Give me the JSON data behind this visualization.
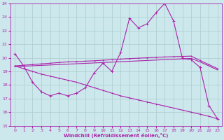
{
  "xlabel": "Windchill (Refroidissement éolien,°C)",
  "ylabel": "",
  "xlim": [
    -0.5,
    23.5
  ],
  "ylim": [
    15,
    24
  ],
  "yticks": [
    15,
    16,
    17,
    18,
    19,
    20,
    21,
    22,
    23,
    24
  ],
  "xticks": [
    0,
    1,
    2,
    3,
    4,
    5,
    6,
    7,
    8,
    9,
    10,
    11,
    12,
    13,
    14,
    15,
    16,
    17,
    18,
    19,
    20,
    21,
    22,
    23
  ],
  "bg_color": "#cce8ec",
  "grid_color": "#aacccc",
  "line_color": "#aa22aa",
  "line1_x": [
    0,
    1,
    2,
    3,
    4,
    5,
    6,
    7,
    8,
    9,
    10,
    11,
    12,
    13,
    14,
    15,
    16,
    17,
    18,
    19,
    20,
    21,
    22,
    23
  ],
  "line1_y": [
    20.3,
    19.4,
    18.2,
    17.5,
    17.2,
    17.4,
    17.2,
    17.4,
    17.8,
    18.9,
    19.6,
    19.0,
    20.4,
    22.9,
    22.2,
    22.5,
    23.3,
    24.0,
    22.7,
    19.95,
    19.85,
    19.3,
    16.5,
    15.5
  ],
  "line2_x": [
    0,
    1,
    2,
    3,
    4,
    5,
    6,
    7,
    8,
    9,
    10,
    11,
    12,
    13,
    14,
    15,
    16,
    17,
    18,
    19,
    20,
    21,
    22,
    23
  ],
  "line2_y": [
    19.4,
    19.45,
    19.5,
    19.55,
    19.6,
    19.65,
    19.7,
    19.72,
    19.75,
    19.78,
    19.82,
    19.86,
    19.9,
    19.94,
    19.97,
    20.0,
    20.03,
    20.06,
    20.08,
    20.1,
    20.12,
    19.8,
    19.5,
    19.2
  ],
  "line3_x": [
    0,
    1,
    2,
    3,
    4,
    5,
    6,
    7,
    8,
    9,
    10,
    11,
    12,
    13,
    14,
    15,
    16,
    17,
    18,
    19,
    20,
    21,
    22,
    23
  ],
  "line3_y": [
    19.35,
    19.38,
    19.41,
    19.44,
    19.47,
    19.5,
    19.53,
    19.56,
    19.59,
    19.62,
    19.65,
    19.68,
    19.71,
    19.74,
    19.77,
    19.8,
    19.83,
    19.86,
    19.89,
    19.92,
    19.95,
    19.7,
    19.4,
    19.1
  ],
  "line4_x": [
    0,
    1,
    2,
    3,
    4,
    5,
    6,
    7,
    8,
    9,
    10,
    11,
    12,
    13,
    14,
    15,
    16,
    17,
    18,
    19,
    20,
    21,
    22,
    23
  ],
  "line4_y": [
    19.4,
    19.2,
    19.0,
    18.8,
    18.65,
    18.5,
    18.35,
    18.2,
    18.0,
    17.8,
    17.6,
    17.4,
    17.2,
    17.05,
    16.9,
    16.75,
    16.6,
    16.45,
    16.3,
    16.15,
    16.0,
    15.85,
    15.7,
    15.5
  ]
}
